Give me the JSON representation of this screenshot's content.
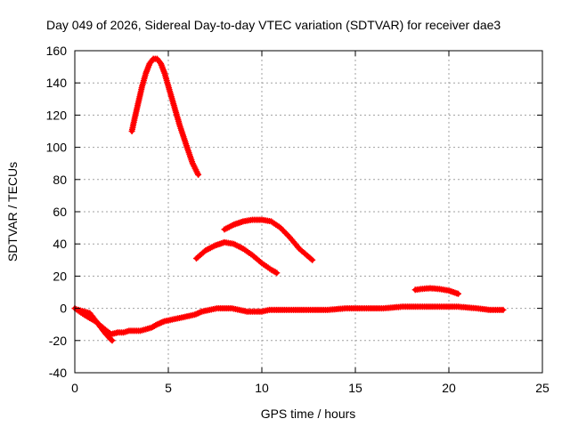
{
  "chart_data": {
    "type": "scatter",
    "title": "Day 049 of 2026, Sidereal Day-to-day VTEC variation (SDTVAR) for receiver dae3",
    "xlabel": "GPS time / hours",
    "ylabel": "SDTVAR / TECUs",
    "xlim": [
      0,
      25
    ],
    "ylim": [
      -40,
      160
    ],
    "x_ticks": [
      0,
      5,
      10,
      15,
      20,
      25
    ],
    "y_ticks": [
      -40,
      -20,
      0,
      20,
      40,
      60,
      80,
      100,
      120,
      140,
      160
    ],
    "grid": true,
    "series_color": "#ff0000",
    "series": [
      {
        "name": "arc-peak-155",
        "x": [
          3.05,
          3.2,
          3.4,
          3.6,
          3.8,
          4.0,
          4.2,
          4.4,
          4.6,
          4.8,
          5.0,
          5.3,
          5.6,
          6.0,
          6.3,
          6.6
        ],
        "y": [
          110,
          118,
          128,
          138,
          146,
          152,
          155,
          155,
          152,
          146,
          138,
          126,
          114,
          100,
          90,
          83
        ]
      },
      {
        "name": "arc-peak-55",
        "x": [
          8.0,
          8.5,
          9.0,
          9.5,
          10.0,
          10.5,
          11.0,
          11.5,
          12.0,
          12.5,
          12.7
        ],
        "y": [
          49,
          52,
          54,
          55,
          55,
          54,
          50,
          44,
          37,
          32,
          30
        ]
      },
      {
        "name": "arc-peak-41",
        "x": [
          6.5,
          7.0,
          7.5,
          8.0,
          8.5,
          9.0,
          9.5,
          10.0,
          10.5,
          10.8
        ],
        "y": [
          31,
          36,
          39,
          41,
          40,
          37,
          33,
          28,
          24,
          22
        ]
      },
      {
        "name": "arc-peak-13",
        "x": [
          18.2,
          18.5,
          19.0,
          19.5,
          20.0,
          20.5
        ],
        "y": [
          11.5,
          12,
          12.5,
          12,
          11,
          9
        ]
      },
      {
        "name": "baseline-track",
        "x": [
          0.0,
          0.25,
          0.5,
          0.8,
          1.1,
          1.4,
          1.7,
          1.95,
          2.3,
          2.6,
          2.9,
          3.2,
          3.5,
          3.8,
          4.1,
          4.4,
          4.8,
          5.2,
          5.6,
          6.0,
          6.4,
          6.8,
          7.2,
          7.6,
          8.0,
          8.4,
          8.8,
          9.2,
          9.6,
          10.0,
          10.4,
          10.8,
          11.5,
          12.5,
          13.5,
          14.5,
          15.5,
          16.5,
          17.5,
          18.5,
          19.5,
          20.5,
          21.5,
          22.2,
          22.9
        ],
        "y": [
          0,
          -2,
          -4,
          -6,
          -8,
          -11,
          -14,
          -16,
          -15,
          -15,
          -14,
          -14,
          -14,
          -13,
          -12,
          -10,
          -8,
          -7,
          -6,
          -5,
          -4,
          -2,
          -1,
          0,
          0,
          0,
          -1,
          -2,
          -2,
          -2,
          -1,
          -1,
          -1,
          -1,
          -1,
          0,
          0,
          0,
          1,
          1,
          1,
          1,
          0,
          -1,
          -1
        ]
      },
      {
        "name": "dip-track",
        "x": [
          0.2,
          0.5,
          0.8,
          1.0,
          1.2,
          1.4,
          1.6,
          1.75,
          1.9,
          2.0
        ],
        "y": [
          -1,
          -2,
          -3,
          -6,
          -9,
          -12,
          -15,
          -17,
          -19,
          -20
        ]
      }
    ]
  }
}
